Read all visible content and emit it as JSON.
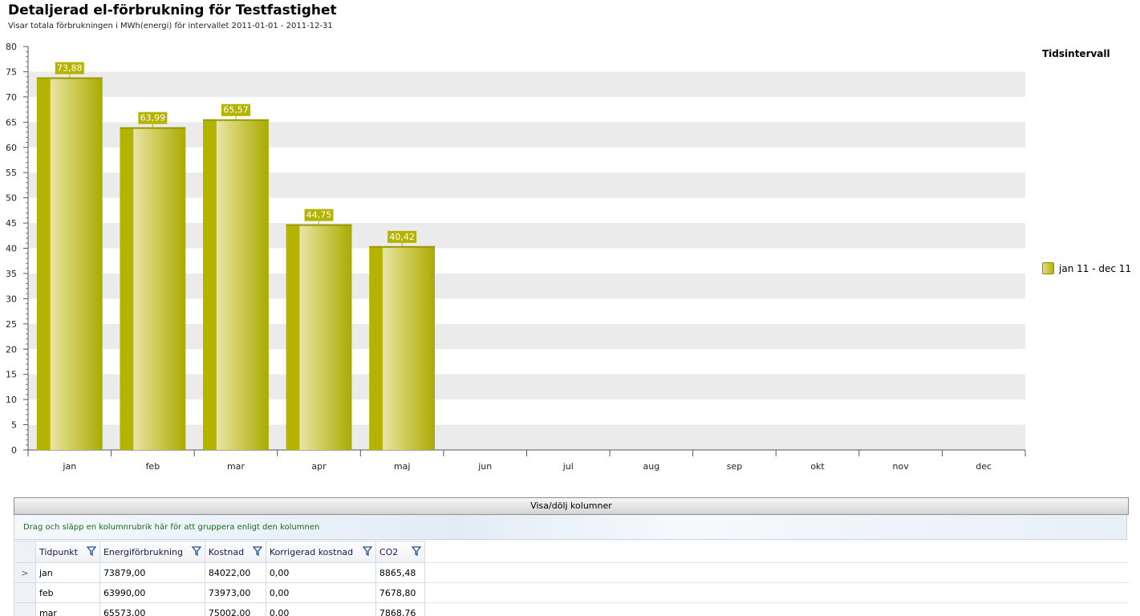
{
  "header": {
    "title": "Detaljerad el-förbrukning för Testfastighet",
    "subtitle": "Visar totala förbrukningen i MWh(energi) för intervallet 2011-01-01 - 2011-12-31"
  },
  "legend": {
    "title": "Tidsintervall",
    "items": [
      "jan 11 - dec 11"
    ]
  },
  "chart_data": {
    "type": "bar",
    "categories": [
      "jan",
      "feb",
      "mar",
      "apr",
      "maj",
      "jun",
      "jul",
      "aug",
      "sep",
      "okt",
      "nov",
      "dec"
    ],
    "series": [
      {
        "name": "jan 11 - dec 11",
        "values": [
          73.88,
          63.99,
          65.57,
          44.75,
          40.42,
          null,
          null,
          null,
          null,
          null,
          null,
          null
        ]
      }
    ],
    "data_labels": [
      "73,88",
      "63,99",
      "65,57",
      "44,75",
      "40,42"
    ],
    "ylim": [
      0,
      80
    ],
    "yticks": [
      0,
      5,
      10,
      15,
      20,
      25,
      30,
      35,
      40,
      45,
      50,
      55,
      60,
      65,
      70,
      75,
      80
    ],
    "grid": "alternating horizontal bands",
    "legend_position": "right",
    "colors": {
      "bar": "#b4b400",
      "bar_light": "#e8e4a6",
      "band": "#ebebeb"
    }
  },
  "grid": {
    "column_toggle_label": "Visa/dölj kolumner",
    "group_hint": "Drag och släpp en kolumnrubrik här för att gruppera enligt den kolumnen",
    "columns": [
      "Tidpunkt",
      "Energiförbrukning",
      "Kostnad",
      "Korrigerad kostnad",
      "CO2"
    ],
    "rows": [
      [
        "jan",
        "73879,00",
        "84022,00",
        "0,00",
        "8865,48"
      ],
      [
        "feb",
        "63990,00",
        "73973,00",
        "0,00",
        "7678,80"
      ],
      [
        "mar",
        "65573,00",
        "75002,00",
        "0,00",
        "7868,76"
      ]
    ],
    "selected_row_marker": ">"
  }
}
